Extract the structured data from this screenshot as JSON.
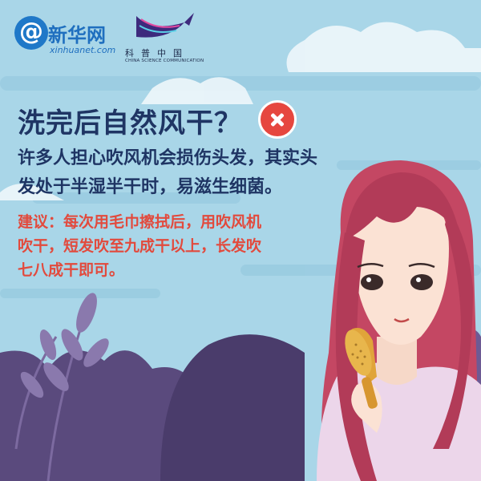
{
  "logos": {
    "xinhua_at": "@",
    "xinhua_cn": "新华网",
    "xinhua_url": "xinhuanet.com",
    "kepu_cn": "科普中国",
    "kepu_en": "CHINA SCIENCE COMMUNICATION"
  },
  "title": "洗完后自然风干？",
  "body_lines": [
    "许多人担心吹风机会损伤头发，其实头",
    "发处于半湿半干时，易滋生细菌。"
  ],
  "advice_lines": [
    "建议：每次用毛巾擦拭后，用吹风机",
    "吹干，短发吹至九成干以上，长发吹",
    "七八成干即可。"
  ],
  "icons": [
    "wrong-x-icon",
    "hairbrush-icon"
  ],
  "colors": {
    "background": "#a9d6e8",
    "title": "#1f3564",
    "advice": "#e24a3d",
    "x_badge": "#e6473f",
    "hair": "#c44763"
  }
}
